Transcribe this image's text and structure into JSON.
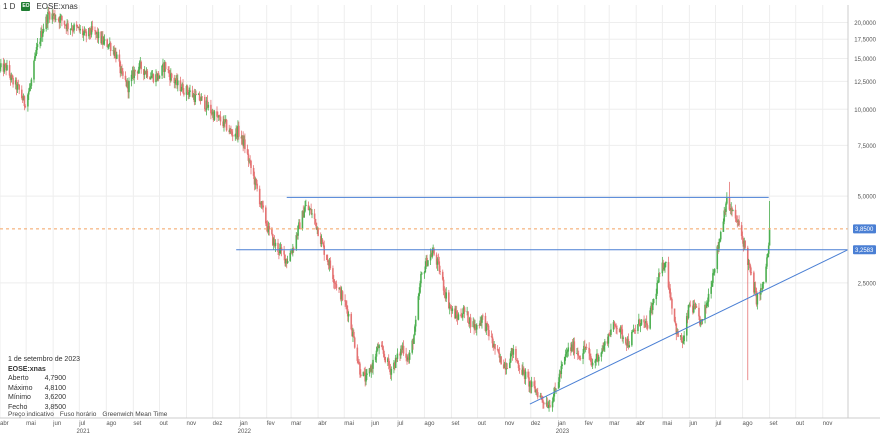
{
  "header": {
    "interval": "1 D",
    "badge": "EO",
    "symbol": "EOSE:xnas"
  },
  "info_panel": {
    "date": "1 de setembro de 2023",
    "symbol": "EOSE:xnas",
    "rows": [
      {
        "label": "Aberto",
        "value": "4,7900"
      },
      {
        "label": "Máximo",
        "value": "4,8100"
      },
      {
        "label": "Mínimo",
        "value": "3,6200"
      },
      {
        "label": "Fecho",
        "value": "3,8500"
      }
    ]
  },
  "footer": {
    "price_type": "Preço indicativo",
    "tz_label": "Fuso horário",
    "tz_value": "Greenwich Mean Time"
  },
  "colors": {
    "up": "#4caf50",
    "down": "#e57373",
    "trend_line": "#4a7fd4",
    "price_line": "#f4a261",
    "axis_text": "#555555",
    "grid": "#eeeeee"
  },
  "chart_data": {
    "type": "candlestick",
    "y_scale": "log",
    "y_ticks": [
      "20,0000",
      "17,5000",
      "15,0000",
      "12,5000",
      "10,0000",
      "7,5000",
      "5,0000",
      "2,5000"
    ],
    "y_tick_values": [
      20,
      17.5,
      15,
      12.5,
      10,
      7.5,
      5,
      2.5
    ],
    "x_months": [
      "abr",
      "mai",
      "jun",
      "jul",
      "ago",
      "set",
      "out",
      "nov",
      "dez",
      "jan",
      "fev",
      "mar",
      "abr",
      "mai",
      "jun",
      "jul",
      "ago",
      "set",
      "out",
      "nov",
      "dez",
      "jan",
      "fev",
      "mar",
      "abr",
      "mai",
      "jun",
      "jul",
      "ago",
      "set",
      "out",
      "nov"
    ],
    "x_years": [
      "2021",
      "2022",
      "2023"
    ],
    "x_range": [
      "2021-04-01",
      "2023-11-30"
    ],
    "ylim": [
      0.85,
      23
    ],
    "last_price": {
      "value": 3.85,
      "label": "3,8500"
    },
    "level_marker": {
      "value": 3.2583,
      "label": "3,2583"
    },
    "horizontal_lines": [
      {
        "value": 4.95,
        "from": "2022-02-24",
        "to": "2023-08-31"
      },
      {
        "value": 3.2583,
        "from": "2021-12-28",
        "to": "2023-11-30"
      }
    ],
    "trend_line": {
      "from": {
        "date": "2022-11-30",
        "value": 0.95
      },
      "to": {
        "date": "2023-11-30",
        "value": 3.2583
      }
    },
    "price_path": [
      [
        "2021-04-01",
        13.8
      ],
      [
        "2021-04-08",
        14.0
      ],
      [
        "2021-04-15",
        12.5
      ],
      [
        "2021-04-22",
        11.8
      ],
      [
        "2021-04-29",
        10.5
      ],
      [
        "2021-05-06",
        12.0
      ],
      [
        "2021-05-13",
        16.0
      ],
      [
        "2021-05-20",
        19.0
      ],
      [
        "2021-05-27",
        21.5
      ],
      [
        "2021-06-03",
        21.0
      ],
      [
        "2021-06-10",
        20.5
      ],
      [
        "2021-06-17",
        19.5
      ],
      [
        "2021-06-24",
        19.2
      ],
      [
        "2021-07-01",
        18.8
      ],
      [
        "2021-07-08",
        18.0
      ],
      [
        "2021-07-15",
        18.6
      ],
      [
        "2021-07-22",
        18.0
      ],
      [
        "2021-07-29",
        17.0
      ],
      [
        "2021-08-05",
        16.8
      ],
      [
        "2021-08-12",
        15.5
      ],
      [
        "2021-08-19",
        13.0
      ],
      [
        "2021-08-26",
        12.0
      ],
      [
        "2021-09-02",
        13.5
      ],
      [
        "2021-09-09",
        14.0
      ],
      [
        "2021-09-16",
        13.5
      ],
      [
        "2021-09-23",
        13.0
      ],
      [
        "2021-09-30",
        13.0
      ],
      [
        "2021-10-07",
        14.2
      ],
      [
        "2021-10-14",
        13.0
      ],
      [
        "2021-10-21",
        12.2
      ],
      [
        "2021-10-28",
        11.8
      ],
      [
        "2021-11-04",
        11.5
      ],
      [
        "2021-11-11",
        11.0
      ],
      [
        "2021-11-18",
        10.8
      ],
      [
        "2021-11-25",
        10.2
      ],
      [
        "2021-12-02",
        9.6
      ],
      [
        "2021-12-09",
        9.2
      ],
      [
        "2021-12-16",
        8.8
      ],
      [
        "2021-12-23",
        8.2
      ],
      [
        "2021-12-30",
        8.4
      ],
      [
        "2022-01-06",
        7.6
      ],
      [
        "2022-01-13",
        6.4
      ],
      [
        "2022-01-20",
        5.4
      ],
      [
        "2022-01-27",
        4.5
      ],
      [
        "2022-02-03",
        3.8
      ],
      [
        "2022-02-10",
        3.4
      ],
      [
        "2022-02-17",
        3.2
      ],
      [
        "2022-02-24",
        3.0
      ],
      [
        "2022-03-03",
        3.3
      ],
      [
        "2022-03-10",
        3.9
      ],
      [
        "2022-03-17",
        4.6
      ],
      [
        "2022-03-24",
        4.4
      ],
      [
        "2022-03-31",
        3.9
      ],
      [
        "2022-04-07",
        3.3
      ],
      [
        "2022-04-14",
        2.9
      ],
      [
        "2022-04-21",
        2.5
      ],
      [
        "2022-04-28",
        2.25
      ],
      [
        "2022-05-05",
        2.0
      ],
      [
        "2022-05-12",
        1.6
      ],
      [
        "2022-05-19",
        1.25
      ],
      [
        "2022-05-26",
        1.15
      ],
      [
        "2022-06-02",
        1.3
      ],
      [
        "2022-06-09",
        1.5
      ],
      [
        "2022-06-16",
        1.4
      ],
      [
        "2022-06-23",
        1.25
      ],
      [
        "2022-06-30",
        1.35
      ],
      [
        "2022-07-07",
        1.5
      ],
      [
        "2022-07-14",
        1.35
      ],
      [
        "2022-07-21",
        1.7
      ],
      [
        "2022-07-28",
        2.6
      ],
      [
        "2022-08-04",
        3.0
      ],
      [
        "2022-08-11",
        3.2
      ],
      [
        "2022-08-18",
        2.8
      ],
      [
        "2022-08-25",
        2.3
      ],
      [
        "2022-09-01",
        2.0
      ],
      [
        "2022-09-08",
        1.9
      ],
      [
        "2022-09-15",
        2.0
      ],
      [
        "2022-09-22",
        1.85
      ],
      [
        "2022-09-29",
        1.75
      ],
      [
        "2022-10-06",
        1.9
      ],
      [
        "2022-10-13",
        1.7
      ],
      [
        "2022-10-20",
        1.5
      ],
      [
        "2022-10-27",
        1.35
      ],
      [
        "2022-11-03",
        1.3
      ],
      [
        "2022-11-10",
        1.45
      ],
      [
        "2022-11-17",
        1.3
      ],
      [
        "2022-11-24",
        1.2
      ],
      [
        "2022-12-01",
        1.1
      ],
      [
        "2022-12-08",
        1.05
      ],
      [
        "2022-12-15",
        0.98
      ],
      [
        "2022-12-22",
        0.95
      ],
      [
        "2022-12-29",
        1.05
      ],
      [
        "2023-01-05",
        1.25
      ],
      [
        "2023-01-12",
        1.45
      ],
      [
        "2023-01-19",
        1.5
      ],
      [
        "2023-01-26",
        1.4
      ],
      [
        "2023-02-02",
        1.5
      ],
      [
        "2023-02-09",
        1.3
      ],
      [
        "2023-02-16",
        1.4
      ],
      [
        "2023-02-23",
        1.5
      ],
      [
        "2023-03-02",
        1.7
      ],
      [
        "2023-03-09",
        1.8
      ],
      [
        "2023-03-16",
        1.65
      ],
      [
        "2023-03-23",
        1.55
      ],
      [
        "2023-03-30",
        1.7
      ],
      [
        "2023-04-06",
        1.85
      ],
      [
        "2023-04-13",
        1.75
      ],
      [
        "2023-04-20",
        2.1
      ],
      [
        "2023-04-27",
        2.6
      ],
      [
        "2023-05-04",
        3.0
      ],
      [
        "2023-05-11",
        2.2
      ],
      [
        "2023-05-18",
        1.65
      ],
      [
        "2023-05-25",
        1.55
      ],
      [
        "2023-06-01",
        2.1
      ],
      [
        "2023-06-08",
        2.0
      ],
      [
        "2023-06-15",
        1.8
      ],
      [
        "2023-06-22",
        2.2
      ],
      [
        "2023-06-29",
        2.8
      ],
      [
        "2023-07-06",
        3.6
      ],
      [
        "2023-07-13",
        4.8
      ],
      [
        "2023-07-20",
        4.4
      ],
      [
        "2023-07-27",
        4.0
      ],
      [
        "2023-08-03",
        3.4
      ],
      [
        "2023-08-10",
        2.7
      ],
      [
        "2023-08-17",
        2.2
      ],
      [
        "2023-08-24",
        2.4
      ],
      [
        "2023-08-31",
        3.3
      ],
      [
        "2023-09-01",
        3.85
      ]
    ],
    "notable_wicks": [
      {
        "date": "2023-07-17",
        "high": 5.6
      },
      {
        "date": "2023-08-07",
        "low": 1.15
      },
      {
        "date": "2023-09-01",
        "high": 4.81,
        "low": 3.62
      }
    ]
  }
}
